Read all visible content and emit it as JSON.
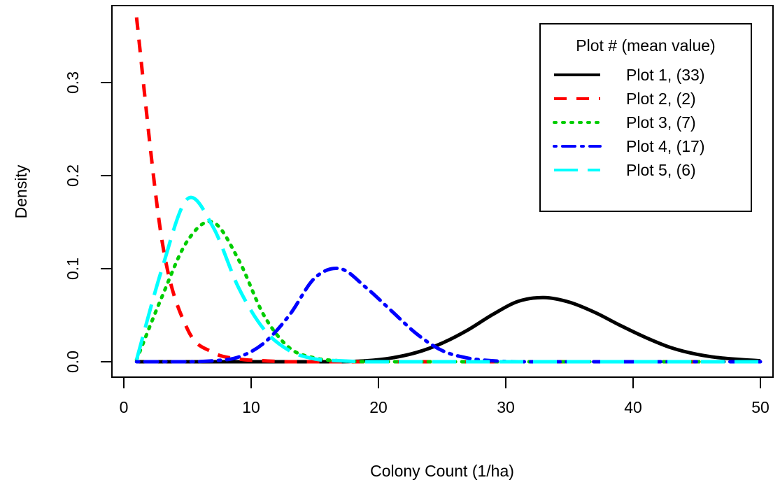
{
  "chart_data": {
    "type": "line",
    "xlabel": "Colony Count (1/ha)",
    "ylabel": "Density",
    "xlim": [
      0,
      50
    ],
    "ylim": [
      0,
      0.37
    ],
    "x_ticks": [
      0,
      10,
      20,
      30,
      40,
      50
    ],
    "y_ticks": [
      0.0,
      0.1,
      0.2,
      0.3
    ],
    "x_tick_labels": [
      "0",
      "10",
      "20",
      "30",
      "40",
      "50"
    ],
    "y_tick_labels": [
      "0.0",
      "0.1",
      "0.2",
      "0.3"
    ],
    "grid": false,
    "legend": {
      "title": "Plot # (mean value)",
      "placement": "top-right"
    },
    "x": [
      1,
      3,
      5,
      7,
      9,
      11,
      13,
      15,
      17,
      19,
      21,
      23,
      25,
      27,
      29,
      31,
      33,
      35,
      37,
      39,
      41,
      43,
      45,
      47,
      50
    ],
    "series": [
      {
        "name": "Plot 1, (33)",
        "color": "#000000",
        "dash": "solid",
        "values": [
          0,
          0,
          0,
          0,
          0,
          0,
          0,
          0,
          0,
          0.001,
          0.004,
          0.01,
          0.02,
          0.034,
          0.051,
          0.065,
          0.069,
          0.064,
          0.053,
          0.039,
          0.026,
          0.015,
          0.008,
          0.004,
          0.001
        ]
      },
      {
        "name": "Plot 2, (2)",
        "color": "#ff0000",
        "dash": "dashed",
        "values": [
          0.37,
          0.13,
          0.035,
          0.01,
          0.003,
          0.001,
          0,
          0,
          0,
          0,
          0,
          0,
          0,
          0,
          0,
          0,
          0,
          0,
          0,
          0,
          0,
          0,
          0,
          0,
          0
        ]
      },
      {
        "name": "Plot 3, (7)",
        "color": "#00cd00",
        "dash": "dotted",
        "values": [
          0.002,
          0.07,
          0.13,
          0.15,
          0.11,
          0.05,
          0.015,
          0.004,
          0.001,
          0,
          0,
          0,
          0,
          0,
          0,
          0,
          0,
          0,
          0,
          0,
          0,
          0,
          0,
          0,
          0
        ]
      },
      {
        "name": "Plot 4, (17)",
        "color": "#0000ff",
        "dash": "dashdot",
        "values": [
          0,
          0,
          0,
          0.001,
          0.005,
          0.02,
          0.05,
          0.09,
          0.1,
          0.08,
          0.055,
          0.03,
          0.012,
          0.004,
          0.001,
          0,
          0,
          0,
          0,
          0,
          0,
          0,
          0,
          0,
          0
        ]
      },
      {
        "name": "Plot 5, (6)",
        "color": "#00ffff",
        "dash": "longdash",
        "values": [
          0.002,
          0.1,
          0.175,
          0.145,
          0.08,
          0.035,
          0.012,
          0.003,
          0.001,
          0,
          0,
          0,
          0,
          0,
          0,
          0,
          0,
          0,
          0,
          0,
          0,
          0,
          0,
          0,
          0
        ]
      }
    ]
  }
}
